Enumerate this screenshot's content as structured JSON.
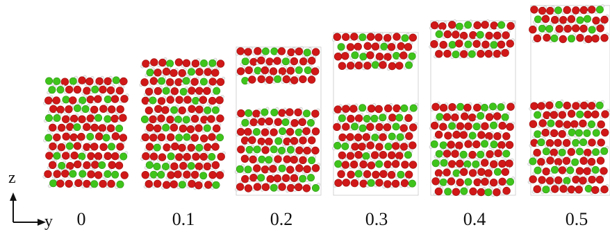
{
  "axes": {
    "vertical": "z",
    "horizontal": "y"
  },
  "strain_labels": [
    "0",
    "0.1",
    "0.2",
    "0.3",
    "0.4",
    "0.5"
  ],
  "colors": {
    "oxygen": "#d01818",
    "chlorine": "#3fc41c",
    "hydrogen": "#f2f2f2",
    "cell_edge": "#c8c8c8"
  },
  "panels": [
    {
      "strain": "0",
      "slabs": 1
    },
    {
      "strain": "0.1",
      "slabs": 1
    },
    {
      "strain": "0.2",
      "slabs": 2
    },
    {
      "strain": "0.3",
      "slabs": 2
    },
    {
      "strain": "0.4",
      "slabs": 2
    },
    {
      "strain": "0.5",
      "slabs": 2
    }
  ]
}
